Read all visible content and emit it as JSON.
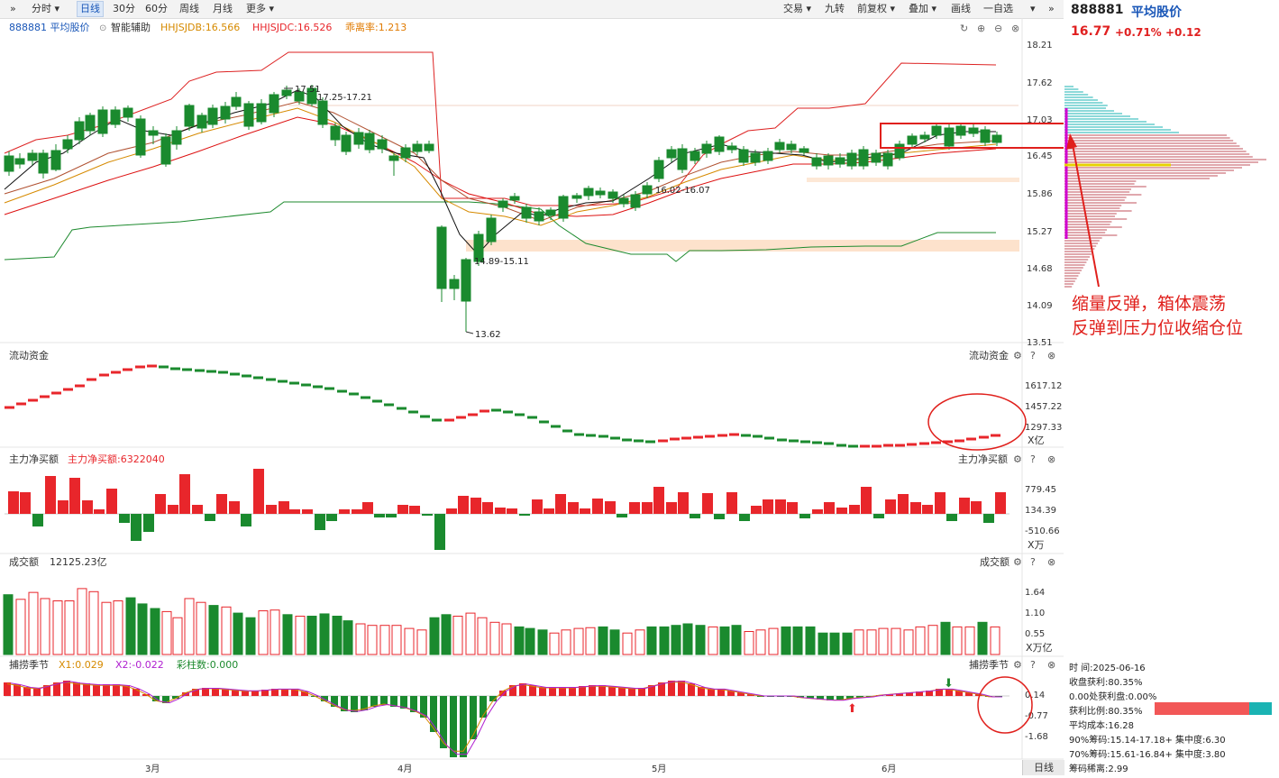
{
  "toolbar": {
    "left": [
      "分时",
      "日线",
      "30分",
      "60分",
      "周线",
      "月线",
      "更多"
    ],
    "right": [
      "交易",
      "九转",
      "前复权",
      "叠加",
      "画线",
      "一自选"
    ]
  },
  "main_legend": {
    "code_name": "888881 平均股价",
    "assist": "智能辅助",
    "hhjsjdb": "HHJSJDB:16.566",
    "hhjsjdc": "HHJSJDC:16.526",
    "chouma": "乖离率:1.213"
  },
  "price_axis": [
    "18.21",
    "17.62",
    "17.03",
    "16.45",
    "15.86",
    "15.27",
    "14.68",
    "14.09",
    "13.51"
  ],
  "price_annotations": {
    "high": "17.51",
    "range_high": "17.25-17.21",
    "range_low": "14.89-15.11",
    "low": "13.62",
    "range_mid": "16.02-16.07"
  },
  "panels": {
    "liudong": {
      "title": "流动资金",
      "axis": [
        "1617.12",
        "1457.22",
        "1297.33"
      ],
      "unit": "X亿"
    },
    "zhuli": {
      "title": "主力净买额",
      "value_label": "主力净买额:6322040",
      "axis": [
        "779.45",
        "134.39",
        "-510.66"
      ],
      "unit": "X万"
    },
    "chengjiao": {
      "title": "成交额",
      "value_label": "12125.23亿",
      "axis": [
        "1.64",
        "1.10",
        "0.55"
      ],
      "unit": "X万亿"
    },
    "buzhuo": {
      "title": "捕捞季节",
      "x1": "X1:0.029",
      "x2": "X2:-0.022",
      "cai": "彩柱数:0.000",
      "axis": [
        "0.14",
        "-0.77",
        "-1.68"
      ]
    }
  },
  "x_axis": [
    "3月",
    "4月",
    "5月",
    "6月"
  ],
  "bottom_tab": "日线",
  "right_panel": {
    "code": "888881",
    "name": "平均股价",
    "price": "16.77",
    "pct": "+0.71%",
    "chg": "+0.12",
    "stats": [
      "时    间:2025-06-16",
      "收盘获利:80.35%",
      "0.00处获利盘:0.00%",
      "获利比例:80.35%",
      "平均成本:16.28",
      "90%筹码:15.14-17.18+ 集中度:6.30",
      "70%筹码:15.61-16.84+ 集中度:3.80",
      "筹码稀离:2.99"
    ]
  },
  "annotation": [
    "缩量反弹，箱体震荡",
    "反弹到压力位收缩仓位"
  ],
  "colors": {
    "up": "#e8262b",
    "down": "#1a8a2e",
    "accent": "#1a57b8"
  }
}
